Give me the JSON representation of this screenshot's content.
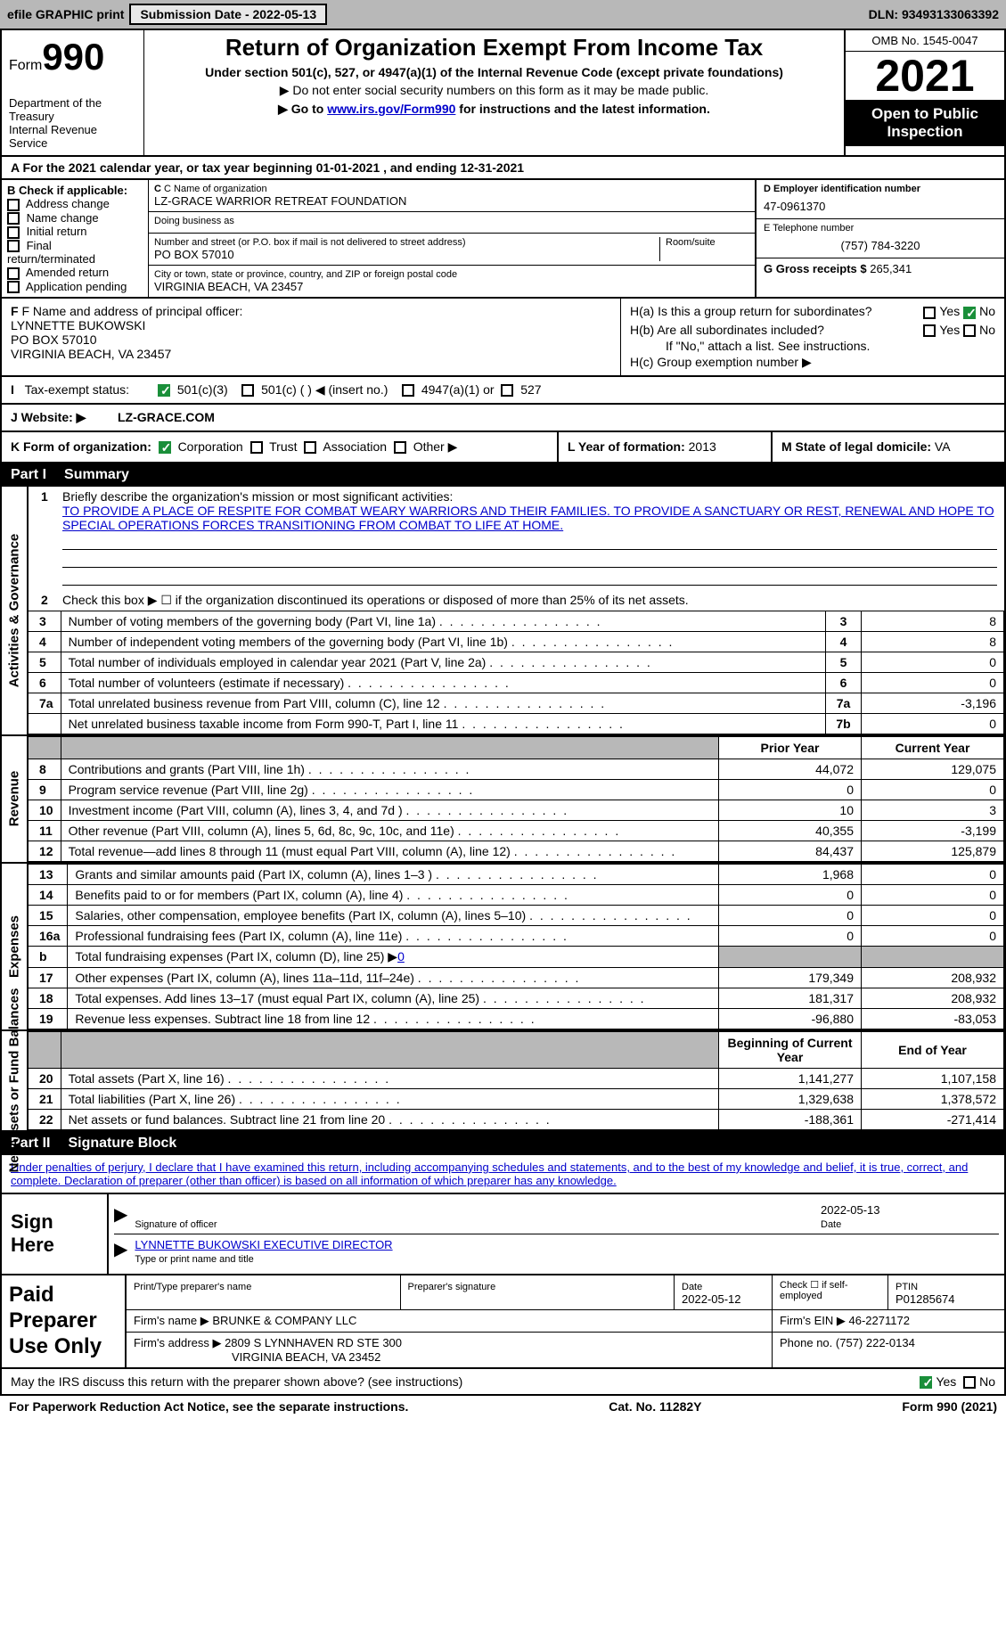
{
  "topbar": {
    "efile": "efile GRAPHIC print",
    "submission": "Submission Date - 2022-05-13",
    "dln": "DLN: 93493133063392"
  },
  "header": {
    "form_label": "Form",
    "form_number": "990",
    "dept": "Department of the Treasury\nInternal Revenue Service",
    "title": "Return of Organization Exempt From Income Tax",
    "sub1": "Under section 501(c), 527, or 4947(a)(1) of the Internal Revenue Code (except private foundations)",
    "sub2": "▶ Do not enter social security numbers on this form as it may be made public.",
    "sub3_pre": "▶ Go to ",
    "sub3_link": "www.irs.gov/Form990",
    "sub3_post": " for instructions and the latest information.",
    "omb": "OMB No. 1545-0047",
    "year": "2021",
    "open": "Open to Public Inspection"
  },
  "rowA": "A For the 2021 calendar year, or tax year beginning 01-01-2021   , and ending 12-31-2021",
  "colB": {
    "label": "B Check if applicable:",
    "opts": [
      "Address change",
      "Name change",
      "Initial return",
      "Final return/terminated",
      "Amended return",
      "Application pending"
    ]
  },
  "colC": {
    "name_label": "C Name of organization",
    "name": "LZ-GRACE WARRIOR RETREAT FOUNDATION",
    "dba_label": "Doing business as",
    "addr_label": "Number and street (or P.O. box if mail is not delivered to street address)",
    "room_label": "Room/suite",
    "addr": "PO BOX 57010",
    "city_label": "City or town, state or province, country, and ZIP or foreign postal code",
    "city": "VIRGINIA BEACH, VA  23457"
  },
  "colD": {
    "ein_label": "D Employer identification number",
    "ein": "47-0961370",
    "tel_label": "E Telephone number",
    "tel": "(757) 784-3220",
    "gross_label": "G Gross receipts $",
    "gross": "265,341"
  },
  "rowF": {
    "label": "F Name and address of principal officer:",
    "name": "LYNNETTE BUKOWSKI",
    "addr1": "PO BOX 57010",
    "addr2": "VIRGINIA BEACH, VA  23457"
  },
  "rowH": {
    "a": "H(a)  Is this a group return for subordinates?",
    "b": "H(b)  Are all subordinates included?",
    "b_note": "If \"No,\" attach a list. See instructions.",
    "c": "H(c)  Group exemption number ▶"
  },
  "rowI": {
    "label": "Tax-exempt status:",
    "opts": [
      "501(c)(3)",
      "501(c) (  ) ◀ (insert no.)",
      "4947(a)(1) or",
      "527"
    ]
  },
  "rowJ": {
    "label": "J   Website: ▶",
    "val": "LZ-GRACE.COM"
  },
  "rowK": {
    "label": "K Form of organization:",
    "opts": [
      "Corporation",
      "Trust",
      "Association",
      "Other ▶"
    ],
    "l_label": "L Year of formation:",
    "l_val": "2013",
    "m_label": "M State of legal domicile:",
    "m_val": "VA"
  },
  "partI": {
    "num": "Part I",
    "title": "Summary"
  },
  "summary": {
    "side_ag": "Activities & Governance",
    "side_rev": "Revenue",
    "side_exp": "Expenses",
    "side_net": "Net Assets or Fund Balances",
    "l1": "Briefly describe the organization's mission or most significant activities:",
    "l1_text": "TO PROVIDE A PLACE OF RESPITE FOR COMBAT WEARY WARRIORS AND THEIR FAMILIES. TO PROVIDE A SANCTUARY OR REST, RENEWAL AND HOPE TO SPECIAL OPERATIONS FORCES TRANSITIONING FROM COMBAT TO LIFE AT HOME.",
    "l2": "Check this box ▶ ☐ if the organization discontinued its operations or disposed of more than 25% of its net assets.",
    "lines_ag": [
      {
        "n": "3",
        "t": "Number of voting members of the governing body (Part VI, line 1a)",
        "box": "3",
        "v": "8"
      },
      {
        "n": "4",
        "t": "Number of independent voting members of the governing body (Part VI, line 1b)",
        "box": "4",
        "v": "8"
      },
      {
        "n": "5",
        "t": "Total number of individuals employed in calendar year 2021 (Part V, line 2a)",
        "box": "5",
        "v": "0"
      },
      {
        "n": "6",
        "t": "Total number of volunteers (estimate if necessary)",
        "box": "6",
        "v": "0"
      },
      {
        "n": "7a",
        "t": "Total unrelated business revenue from Part VIII, column (C), line 12",
        "box": "7a",
        "v": "-3,196"
      },
      {
        "n": "",
        "t": "Net unrelated business taxable income from Form 990-T, Part I, line 11",
        "box": "7b",
        "v": "0"
      }
    ],
    "hdr_prior": "Prior Year",
    "hdr_curr": "Current Year",
    "lines_rev": [
      {
        "n": "8",
        "t": "Contributions and grants (Part VIII, line 1h)",
        "p": "44,072",
        "c": "129,075"
      },
      {
        "n": "9",
        "t": "Program service revenue (Part VIII, line 2g)",
        "p": "0",
        "c": "0"
      },
      {
        "n": "10",
        "t": "Investment income (Part VIII, column (A), lines 3, 4, and 7d )",
        "p": "10",
        "c": "3"
      },
      {
        "n": "11",
        "t": "Other revenue (Part VIII, column (A), lines 5, 6d, 8c, 9c, 10c, and 11e)",
        "p": "40,355",
        "c": "-3,199"
      },
      {
        "n": "12",
        "t": "Total revenue—add lines 8 through 11 (must equal Part VIII, column (A), line 12)",
        "p": "84,437",
        "c": "125,879"
      }
    ],
    "lines_exp": [
      {
        "n": "13",
        "t": "Grants and similar amounts paid (Part IX, column (A), lines 1–3 )",
        "p": "1,968",
        "c": "0"
      },
      {
        "n": "14",
        "t": "Benefits paid to or for members (Part IX, column (A), line 4)",
        "p": "0",
        "c": "0"
      },
      {
        "n": "15",
        "t": "Salaries, other compensation, employee benefits (Part IX, column (A), lines 5–10)",
        "p": "0",
        "c": "0"
      },
      {
        "n": "16a",
        "t": "Professional fundraising fees (Part IX, column (A), line 11e)",
        "p": "0",
        "c": "0"
      }
    ],
    "l16b_pre": "Total fundraising expenses (Part IX, column (D), line 25) ▶",
    "l16b_val": "0",
    "lines_exp2": [
      {
        "n": "17",
        "t": "Other expenses (Part IX, column (A), lines 11a–11d, 11f–24e)",
        "p": "179,349",
        "c": "208,932"
      },
      {
        "n": "18",
        "t": "Total expenses. Add lines 13–17 (must equal Part IX, column (A), line 25)",
        "p": "181,317",
        "c": "208,932"
      },
      {
        "n": "19",
        "t": "Revenue less expenses. Subtract line 18 from line 12",
        "p": "-96,880",
        "c": "-83,053"
      }
    ],
    "hdr_begin": "Beginning of Current Year",
    "hdr_end": "End of Year",
    "lines_net": [
      {
        "n": "20",
        "t": "Total assets (Part X, line 16)",
        "p": "1,141,277",
        "c": "1,107,158"
      },
      {
        "n": "21",
        "t": "Total liabilities (Part X, line 26)",
        "p": "1,329,638",
        "c": "1,378,572"
      },
      {
        "n": "22",
        "t": "Net assets or fund balances. Subtract line 21 from line 20",
        "p": "-188,361",
        "c": "-271,414"
      }
    ]
  },
  "partII": {
    "num": "Part II",
    "title": "Signature Block"
  },
  "sig": {
    "decl": "Under penalties of perjury, I declare that I have examined this return, including accompanying schedules and statements, and to the best of my knowledge and belief, it is true, correct, and complete. Declaration of preparer (other than officer) is based on all information of which preparer has any knowledge.",
    "sign_here": "Sign Here",
    "sig_off": "Signature of officer",
    "date_val": "2022-05-13",
    "date": "Date",
    "name": "LYNNETTE BUKOWSKI  EXECUTIVE DIRECTOR",
    "name_label": "Type or print name and title"
  },
  "prep": {
    "label": "Paid Preparer Use Only",
    "print_label": "Print/Type preparer's name",
    "sig_label": "Preparer's signature",
    "date_label": "Date",
    "date": "2022-05-12",
    "chk_label": "Check ☐ if self-employed",
    "ptin_label": "PTIN",
    "ptin": "P01285674",
    "firm_name_label": "Firm's name   ▶",
    "firm_name": "BRUNKE & COMPANY LLC",
    "firm_ein_label": "Firm's EIN ▶",
    "firm_ein": "46-2271172",
    "firm_addr_label": "Firm's address ▶",
    "firm_addr1": "2809 S LYNNHAVEN RD STE 300",
    "firm_addr2": "VIRGINIA BEACH, VA  23452",
    "phone_label": "Phone no.",
    "phone": "(757) 222-0134"
  },
  "discuss": "May the IRS discuss this return with the preparer shown above? (see instructions)",
  "bottom": {
    "l": "For Paperwork Reduction Act Notice, see the separate instructions.",
    "m": "Cat. No. 11282Y",
    "r": "Form 990 (2021)"
  }
}
